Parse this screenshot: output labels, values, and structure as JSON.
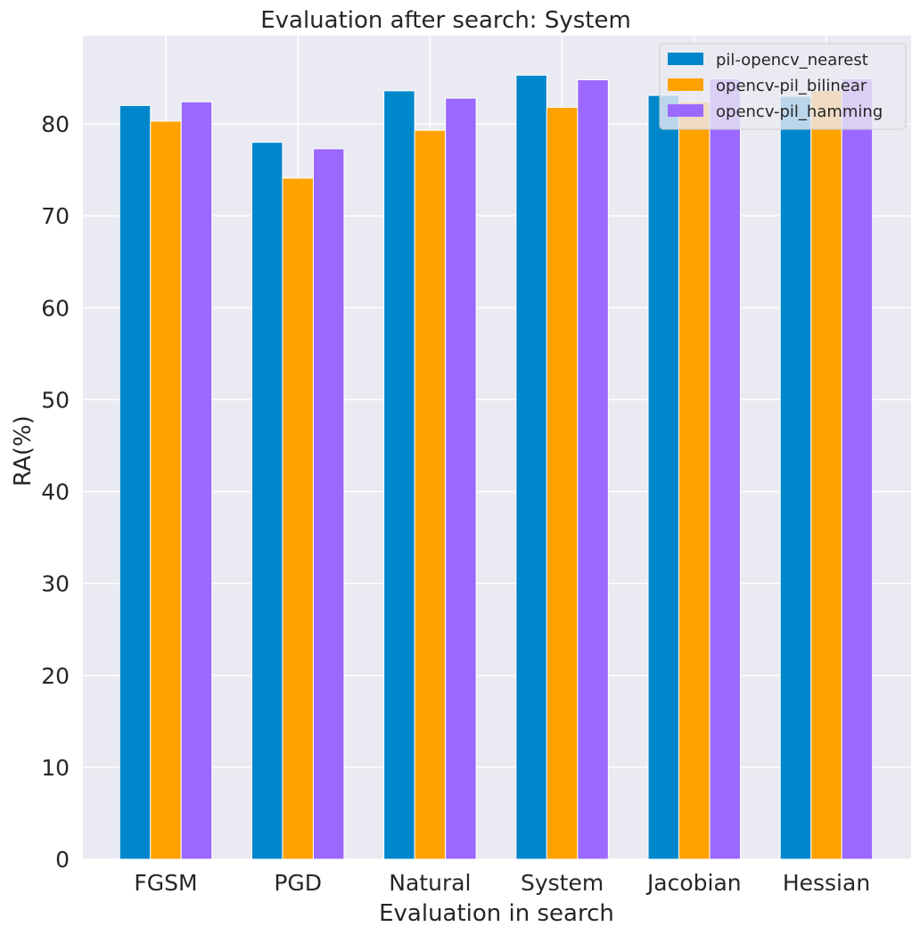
{
  "chart_data": {
    "type": "bar",
    "title": "Evaluation after search: System",
    "xlabel": "Evaluation in search",
    "ylabel": "RA(%)",
    "categories": [
      "FGSM",
      "PGD",
      "Natural",
      "System",
      "Jacobian",
      "Hessian"
    ],
    "ylim": [
      0,
      89.6
    ],
    "yticks": [
      0,
      10,
      20,
      30,
      40,
      50,
      60,
      70,
      80
    ],
    "grid": true,
    "legend_position": "top-right",
    "series": [
      {
        "name": "pil-opencv_nearest",
        "color": "#0087cb",
        "values": [
          82.0,
          78.0,
          83.6,
          85.3,
          83.1,
          83.0
        ]
      },
      {
        "name": "opencv-pil_bilinear",
        "color": "#ffa200",
        "values": [
          80.3,
          74.1,
          79.3,
          81.8,
          82.4,
          83.6
        ]
      },
      {
        "name": "opencv-pil_hamming",
        "color": "#9b69ff",
        "values": [
          82.4,
          77.3,
          82.8,
          84.8,
          84.9,
          84.9
        ]
      }
    ]
  }
}
